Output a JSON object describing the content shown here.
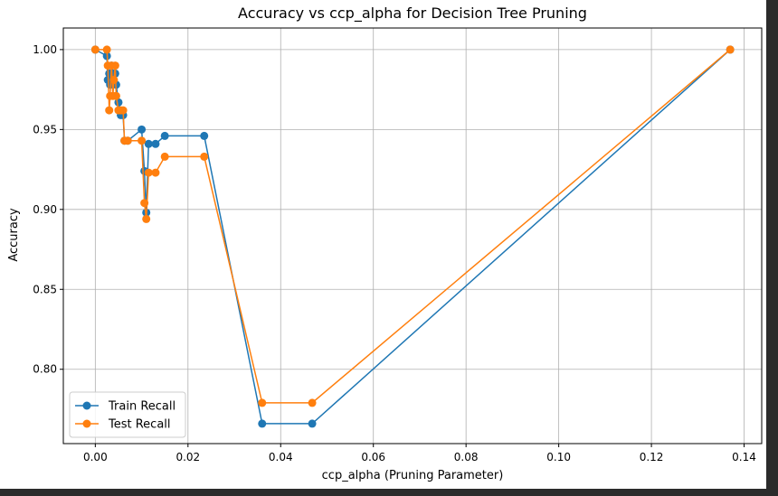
{
  "chart_data": {
    "type": "line",
    "title": "Accuracy vs ccp_alpha for Decision Tree Pruning",
    "xlabel": "ccp_alpha (Pruning Parameter)",
    "ylabel": "Accuracy",
    "xlim": [
      -0.0069,
      0.1438
    ],
    "ylim": [
      0.7535,
      1.0135
    ],
    "xticks": [
      0.0,
      0.02,
      0.04,
      0.06,
      0.08,
      0.1,
      0.12,
      0.14
    ],
    "xtick_labels": [
      "0.00",
      "0.02",
      "0.04",
      "0.06",
      "0.08",
      "0.10",
      "0.12",
      "0.14"
    ],
    "yticks": [
      0.8,
      0.85,
      0.9,
      0.95,
      1.0
    ],
    "ytick_labels": [
      "0.80",
      "0.85",
      "0.90",
      "0.95",
      "1.00"
    ],
    "grid": true,
    "legend_position": "lower-left",
    "series": [
      {
        "name": "Train Recall",
        "color": "#1f77b4",
        "x": [
          0.0,
          0.0025,
          0.0027,
          0.003,
          0.0032,
          0.0035,
          0.0038,
          0.004,
          0.0043,
          0.0045,
          0.005,
          0.0055,
          0.006,
          0.0063,
          0.007,
          0.01,
          0.0106,
          0.011,
          0.0115,
          0.013,
          0.015,
          0.0235,
          0.036,
          0.0468,
          0.137
        ],
        "y": [
          1.0,
          0.996,
          0.981,
          0.985,
          0.978,
          0.99,
          0.985,
          0.98,
          0.985,
          0.978,
          0.967,
          0.959,
          0.959,
          0.943,
          0.943,
          0.95,
          0.924,
          0.898,
          0.941,
          0.941,
          0.946,
          0.946,
          0.766,
          0.766,
          1.0
        ]
      },
      {
        "name": "Test Recall",
        "color": "#ff7f0e",
        "x": [
          0.0,
          0.0025,
          0.0027,
          0.003,
          0.0032,
          0.0035,
          0.0038,
          0.004,
          0.0043,
          0.0045,
          0.005,
          0.0055,
          0.006,
          0.0063,
          0.007,
          0.01,
          0.0106,
          0.011,
          0.0115,
          0.013,
          0.015,
          0.0235,
          0.036,
          0.0468,
          0.137
        ],
        "y": [
          1.0,
          1.0,
          0.99,
          0.962,
          0.971,
          0.99,
          0.971,
          0.981,
          0.99,
          0.971,
          0.962,
          0.962,
          0.962,
          0.943,
          0.943,
          0.943,
          0.904,
          0.894,
          0.923,
          0.923,
          0.933,
          0.933,
          0.779,
          0.779,
          1.0
        ]
      }
    ]
  }
}
